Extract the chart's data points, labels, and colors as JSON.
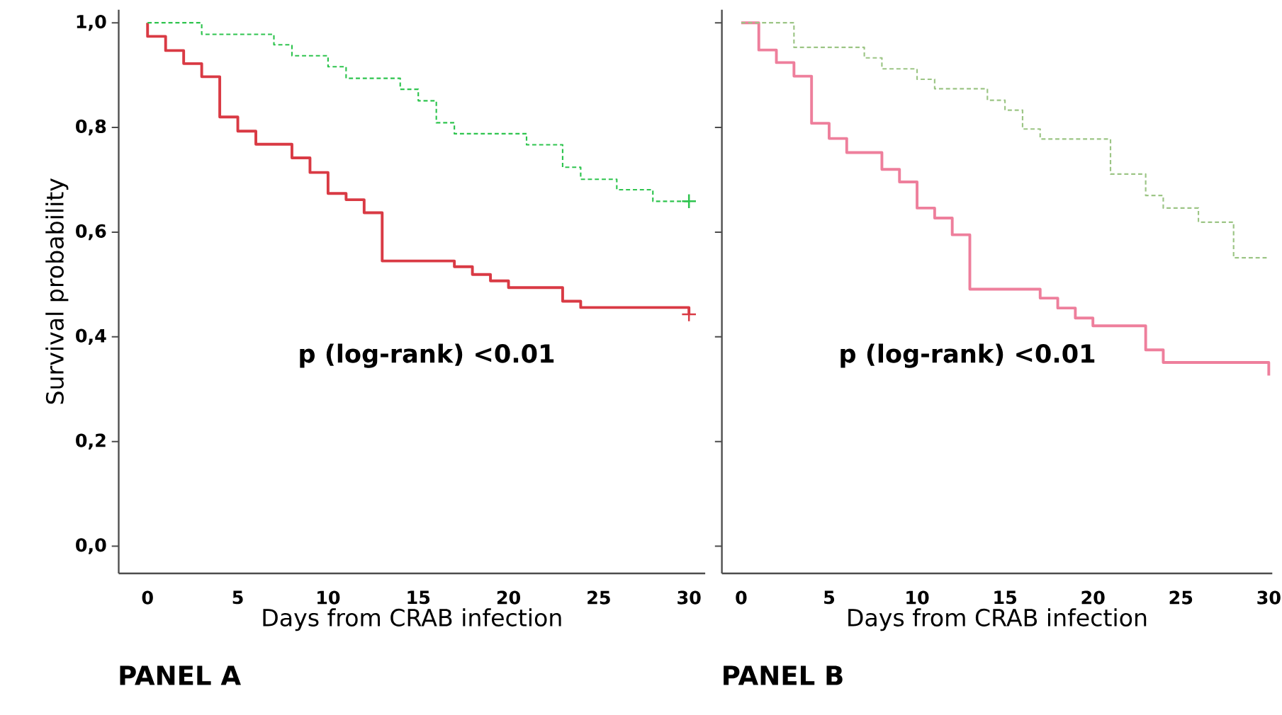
{
  "chart_data": [
    {
      "type": "step",
      "title": "PANEL A",
      "xlabel": "Days from CRAB infection",
      "ylabel": "Survival probability",
      "annotations": [
        "p (log-rank) <0.01"
      ],
      "xlim": [
        -1.6,
        30.9
      ],
      "ylim": [
        -0.052,
        1.025
      ],
      "xticks": [
        0,
        5,
        10,
        15,
        20,
        25,
        30
      ],
      "yticks": [
        {
          "value": 0,
          "label": "0,0"
        },
        {
          "value": 0.2,
          "label": "0,2"
        },
        {
          "value": 0.4,
          "label": "0,4"
        },
        {
          "value": 0.6,
          "label": "0,6"
        },
        {
          "value": 0.8,
          "label": "0,8"
        },
        {
          "value": 1.0,
          "label": "1,0"
        }
      ],
      "series": [
        {
          "color": "#d93a44",
          "line_style": "solid",
          "x": [
            0,
            0,
            1,
            2,
            3,
            4,
            5,
            6,
            8,
            9,
            10,
            11,
            12,
            13,
            17,
            18,
            19,
            20,
            23,
            24,
            30
          ],
          "values": [
            1.0,
            0.974,
            0.947,
            0.922,
            0.897,
            0.82,
            0.793,
            0.768,
            0.742,
            0.714,
            0.674,
            0.662,
            0.637,
            0.545,
            0.534,
            0.519,
            0.507,
            0.494,
            0.468,
            0.456,
            0.443
          ]
        },
        {
          "color": "#2ec44e",
          "line_style": "dashed",
          "x": [
            0,
            3,
            7,
            8,
            10,
            11,
            14,
            15,
            16,
            17,
            21,
            23,
            24,
            26,
            28,
            30
          ],
          "values": [
            1.0,
            0.978,
            0.958,
            0.937,
            0.916,
            0.894,
            0.873,
            0.851,
            0.809,
            0.788,
            0.767,
            0.724,
            0.701,
            0.681,
            0.659,
            0.659
          ]
        },
        {
          "type": "scatter",
          "marker": "cross",
          "color": "#d93a44",
          "x": [
            30
          ],
          "values": [
            0.443
          ]
        },
        {
          "type": "scatter",
          "marker": "cross",
          "color": "#2ec44e",
          "x": [
            30
          ],
          "values": [
            0.659
          ]
        }
      ]
    },
    {
      "type": "step",
      "title": "PANEL B",
      "xlabel": "Days from CRAB infection",
      "annotations": [
        "p (log-rank) <0.01"
      ],
      "tick_labels": "x",
      "xlim": [
        -1.1,
        30.2
      ],
      "ylim": [
        -0.052,
        1.025
      ],
      "xticks": [
        0,
        5,
        10,
        15,
        20,
        25,
        30
      ],
      "yticks": [
        {
          "value": 0,
          "label": null
        },
        {
          "value": 0.2,
          "label": null
        },
        {
          "value": 0.4,
          "label": null
        },
        {
          "value": 0.6,
          "label": null
        },
        {
          "value": 0.8,
          "label": null
        },
        {
          "value": 1.0,
          "label": null
        }
      ],
      "series": [
        {
          "color": "#ee7f9c",
          "line_style": "solid",
          "x": [
            0,
            1,
            2,
            3,
            4,
            5,
            6,
            8,
            9,
            10,
            11,
            12,
            13,
            17,
            18,
            19,
            20,
            23,
            24,
            30
          ],
          "values": [
            1.0,
            0.948,
            0.924,
            0.898,
            0.808,
            0.779,
            0.752,
            0.72,
            0.696,
            0.646,
            0.627,
            0.595,
            0.491,
            0.474,
            0.455,
            0.436,
            0.421,
            0.375,
            0.351,
            0.326
          ]
        },
        {
          "color": "#9cc585",
          "line_style": "dashed",
          "x": [
            0,
            3,
            7,
            8,
            10,
            11,
            14,
            15,
            16,
            17,
            21,
            23,
            24,
            26,
            28,
            30
          ],
          "values": [
            1.0,
            0.953,
            0.933,
            0.912,
            0.892,
            0.874,
            0.852,
            0.833,
            0.797,
            0.778,
            0.711,
            0.67,
            0.646,
            0.619,
            0.551,
            0.551
          ]
        }
      ]
    }
  ]
}
